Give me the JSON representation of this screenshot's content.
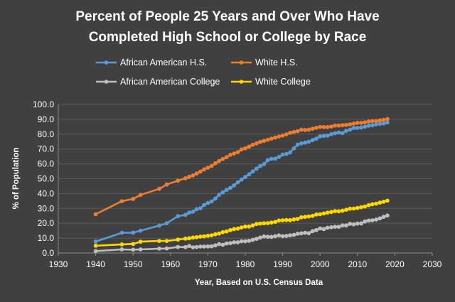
{
  "chart_data": {
    "type": "line",
    "title_line1": "Percent of People 25 Years and Over Who Have",
    "title_line2": "Completed High School or College by Race",
    "xlabel": "Year, Based on U.S. Census Data",
    "ylabel": "% of Population",
    "xlim": [
      1930,
      2030
    ],
    "ylim": [
      0,
      100
    ],
    "x_ticks": [
      "1930",
      "1940",
      "1950",
      "1960",
      "1970",
      "1980",
      "1990",
      "2000",
      "2010",
      "2020",
      "2030"
    ],
    "y_ticks": [
      "0.0",
      "10.0",
      "20.0",
      "30.0",
      "40.0",
      "50.0",
      "60.0",
      "70.0",
      "80.0",
      "90.0",
      "100.0"
    ],
    "grid": true,
    "legend_position": "top",
    "series": [
      {
        "name": "African American H.S.",
        "color": "#5B9BD5",
        "points": [
          [
            1940,
            7.7
          ],
          [
            1947,
            13.6
          ],
          [
            1950,
            13.7
          ],
          [
            1952,
            15.0
          ],
          [
            1957,
            18.4
          ],
          [
            1959,
            20.0
          ],
          [
            1962,
            24.8
          ],
          [
            1964,
            25.7
          ],
          [
            1965,
            27.2
          ],
          [
            1966,
            27.8
          ],
          [
            1967,
            29.5
          ],
          [
            1968,
            30.1
          ],
          [
            1969,
            32.3
          ],
          [
            1970,
            33.7
          ],
          [
            1971,
            34.7
          ],
          [
            1972,
            36.6
          ],
          [
            1973,
            39.2
          ],
          [
            1974,
            40.8
          ],
          [
            1975,
            42.5
          ],
          [
            1976,
            43.8
          ],
          [
            1977,
            45.5
          ],
          [
            1978,
            47.6
          ],
          [
            1979,
            49.4
          ],
          [
            1980,
            51.2
          ],
          [
            1981,
            52.9
          ],
          [
            1982,
            54.9
          ],
          [
            1983,
            56.8
          ],
          [
            1984,
            58.5
          ],
          [
            1985,
            59.8
          ],
          [
            1986,
            62.5
          ],
          [
            1987,
            63.4
          ],
          [
            1988,
            63.5
          ],
          [
            1989,
            64.6
          ],
          [
            1990,
            66.2
          ],
          [
            1991,
            66.7
          ],
          [
            1992,
            67.7
          ],
          [
            1993,
            70.4
          ],
          [
            1994,
            72.9
          ],
          [
            1995,
            73.8
          ],
          [
            1996,
            74.3
          ],
          [
            1997,
            74.9
          ],
          [
            1998,
            76.0
          ],
          [
            1999,
            77.0
          ],
          [
            2000,
            78.5
          ],
          [
            2001,
            78.8
          ],
          [
            2002,
            79.0
          ],
          [
            2003,
            80.0
          ],
          [
            2004,
            80.6
          ],
          [
            2005,
            81.1
          ],
          [
            2006,
            80.7
          ],
          [
            2007,
            82.3
          ],
          [
            2008,
            83.0
          ],
          [
            2009,
            84.1
          ],
          [
            2010,
            84.2
          ],
          [
            2011,
            84.5
          ],
          [
            2012,
            85.0
          ],
          [
            2013,
            85.7
          ],
          [
            2014,
            86.0
          ],
          [
            2015,
            86.6
          ],
          [
            2016,
            87.0
          ],
          [
            2017,
            87.2
          ],
          [
            2018,
            87.9
          ]
        ]
      },
      {
        "name": "White H.S.",
        "color": "#ED7D31",
        "points": [
          [
            1940,
            26.1
          ],
          [
            1947,
            34.9
          ],
          [
            1950,
            36.4
          ],
          [
            1952,
            39.1
          ],
          [
            1957,
            43.2
          ],
          [
            1959,
            46.1
          ],
          [
            1962,
            48.7
          ],
          [
            1964,
            50.3
          ],
          [
            1965,
            51.3
          ],
          [
            1966,
            52.2
          ],
          [
            1967,
            53.5
          ],
          [
            1968,
            54.8
          ],
          [
            1969,
            56.3
          ],
          [
            1970,
            57.4
          ],
          [
            1971,
            58.6
          ],
          [
            1972,
            60.4
          ],
          [
            1973,
            61.9
          ],
          [
            1974,
            63.3
          ],
          [
            1975,
            64.5
          ],
          [
            1976,
            66.1
          ],
          [
            1977,
            67.0
          ],
          [
            1978,
            67.9
          ],
          [
            1979,
            69.7
          ],
          [
            1980,
            70.5
          ],
          [
            1981,
            71.6
          ],
          [
            1982,
            72.8
          ],
          [
            1983,
            73.8
          ],
          [
            1984,
            74.8
          ],
          [
            1985,
            75.5
          ],
          [
            1986,
            76.2
          ],
          [
            1987,
            77.0
          ],
          [
            1988,
            77.7
          ],
          [
            1989,
            78.4
          ],
          [
            1990,
            79.1
          ],
          [
            1991,
            79.9
          ],
          [
            1992,
            80.9
          ],
          [
            1993,
            81.5
          ],
          [
            1994,
            82.0
          ],
          [
            1995,
            83.0
          ],
          [
            1996,
            82.8
          ],
          [
            1997,
            83.0
          ],
          [
            1998,
            83.7
          ],
          [
            1999,
            84.3
          ],
          [
            2000,
            84.9
          ],
          [
            2001,
            84.8
          ],
          [
            2002,
            84.8
          ],
          [
            2003,
            85.1
          ],
          [
            2004,
            85.8
          ],
          [
            2005,
            85.8
          ],
          [
            2006,
            86.1
          ],
          [
            2007,
            86.2
          ],
          [
            2008,
            86.6
          ],
          [
            2009,
            87.1
          ],
          [
            2010,
            87.6
          ],
          [
            2011,
            87.6
          ],
          [
            2012,
            88.0
          ],
          [
            2013,
            88.5
          ],
          [
            2014,
            88.8
          ],
          [
            2015,
            88.8
          ],
          [
            2016,
            89.3
          ],
          [
            2017,
            89.6
          ],
          [
            2018,
            90.2
          ]
        ]
      },
      {
        "name": "African American College",
        "color": "#BFBFBF",
        "points": [
          [
            1940,
            1.3
          ],
          [
            1947,
            2.4
          ],
          [
            1950,
            2.2
          ],
          [
            1952,
            2.4
          ],
          [
            1957,
            2.9
          ],
          [
            1959,
            3.0
          ],
          [
            1962,
            4.0
          ],
          [
            1964,
            3.9
          ],
          [
            1965,
            4.7
          ],
          [
            1966,
            3.8
          ],
          [
            1967,
            4.0
          ],
          [
            1968,
            4.3
          ],
          [
            1969,
            4.3
          ],
          [
            1970,
            4.4
          ],
          [
            1971,
            4.5
          ],
          [
            1972,
            5.1
          ],
          [
            1973,
            6.0
          ],
          [
            1974,
            5.5
          ],
          [
            1975,
            6.4
          ],
          [
            1976,
            6.6
          ],
          [
            1977,
            7.2
          ],
          [
            1978,
            7.2
          ],
          [
            1979,
            7.9
          ],
          [
            1980,
            7.9
          ],
          [
            1981,
            8.2
          ],
          [
            1982,
            8.8
          ],
          [
            1983,
            9.5
          ],
          [
            1984,
            10.4
          ],
          [
            1985,
            11.1
          ],
          [
            1986,
            10.9
          ],
          [
            1987,
            10.8
          ],
          [
            1988,
            11.3
          ],
          [
            1989,
            11.8
          ],
          [
            1990,
            11.3
          ],
          [
            1991,
            11.5
          ],
          [
            1992,
            11.9
          ],
          [
            1993,
            12.2
          ],
          [
            1994,
            12.9
          ],
          [
            1995,
            13.2
          ],
          [
            1996,
            13.6
          ],
          [
            1997,
            13.3
          ],
          [
            1998,
            14.7
          ],
          [
            1999,
            15.4
          ],
          [
            2000,
            16.5
          ],
          [
            2001,
            16.1
          ],
          [
            2002,
            17.0
          ],
          [
            2003,
            17.3
          ],
          [
            2004,
            17.6
          ],
          [
            2005,
            17.6
          ],
          [
            2006,
            18.5
          ],
          [
            2007,
            18.5
          ],
          [
            2008,
            19.6
          ],
          [
            2009,
            19.3
          ],
          [
            2010,
            19.8
          ],
          [
            2011,
            19.9
          ],
          [
            2012,
            21.2
          ],
          [
            2013,
            21.8
          ],
          [
            2014,
            22.0
          ],
          [
            2015,
            22.5
          ],
          [
            2016,
            23.3
          ],
          [
            2017,
            24.3
          ],
          [
            2018,
            25.2
          ]
        ]
      },
      {
        "name": "White College",
        "color": "#FFD700",
        "points": [
          [
            1940,
            4.9
          ],
          [
            1947,
            5.8
          ],
          [
            1950,
            6.1
          ],
          [
            1952,
            7.6
          ],
          [
            1957,
            8.1
          ],
          [
            1959,
            8.1
          ],
          [
            1962,
            9.0
          ],
          [
            1964,
            9.6
          ],
          [
            1965,
            9.9
          ],
          [
            1966,
            10.4
          ],
          [
            1967,
            10.6
          ],
          [
            1968,
            11.0
          ],
          [
            1969,
            11.2
          ],
          [
            1970,
            11.6
          ],
          [
            1971,
            11.9
          ],
          [
            1972,
            12.6
          ],
          [
            1973,
            13.1
          ],
          [
            1974,
            14.0
          ],
          [
            1975,
            14.5
          ],
          [
            1976,
            15.4
          ],
          [
            1977,
            16.1
          ],
          [
            1978,
            16.4
          ],
          [
            1979,
            17.2
          ],
          [
            1980,
            17.8
          ],
          [
            1981,
            17.8
          ],
          [
            1982,
            18.5
          ],
          [
            1983,
            19.5
          ],
          [
            1984,
            19.8
          ],
          [
            1985,
            20.0
          ],
          [
            1986,
            20.1
          ],
          [
            1987,
            20.5
          ],
          [
            1988,
            20.9
          ],
          [
            1989,
            21.8
          ],
          [
            1990,
            22.0
          ],
          [
            1991,
            22.2
          ],
          [
            1992,
            22.1
          ],
          [
            1993,
            22.6
          ],
          [
            1994,
            22.9
          ],
          [
            1995,
            24.0
          ],
          [
            1996,
            24.3
          ],
          [
            1997,
            24.6
          ],
          [
            1998,
            25.0
          ],
          [
            1999,
            25.9
          ],
          [
            2000,
            26.1
          ],
          [
            2001,
            26.6
          ],
          [
            2002,
            27.2
          ],
          [
            2003,
            27.6
          ],
          [
            2004,
            28.2
          ],
          [
            2005,
            28.1
          ],
          [
            2006,
            28.4
          ],
          [
            2007,
            29.1
          ],
          [
            2008,
            29.8
          ],
          [
            2009,
            29.9
          ],
          [
            2010,
            30.3
          ],
          [
            2011,
            30.8
          ],
          [
            2012,
            31.3
          ],
          [
            2013,
            32.2
          ],
          [
            2014,
            32.8
          ],
          [
            2015,
            33.2
          ],
          [
            2016,
            33.9
          ],
          [
            2017,
            34.5
          ],
          [
            2018,
            35.2
          ]
        ]
      }
    ]
  }
}
